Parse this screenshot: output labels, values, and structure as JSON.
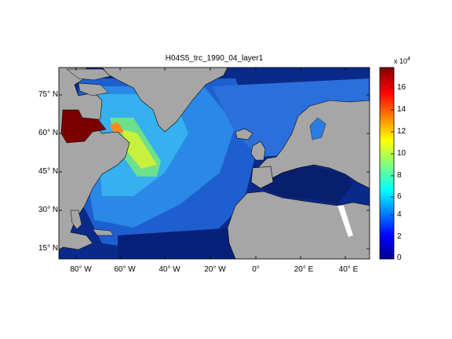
{
  "figure": {
    "title": "H04S5_trc_1990_04_layer1",
    "lat_ticks": [
      "75° N",
      "60° N",
      "45° N",
      "30° N",
      "15° N"
    ],
    "lon_ticks": [
      "80° W",
      "60° W",
      "40° W",
      "20° W",
      "0°",
      "20° E",
      "40° E"
    ],
    "colorbar": {
      "multiplier_base": "x 10",
      "multiplier_exp": "4",
      "ticks": [
        "16",
        "14",
        "12",
        "10",
        "8",
        "6",
        "4",
        "2",
        "0"
      ],
      "min": 0,
      "max": 17.5,
      "colormap": "jet"
    },
    "colors": {
      "land": "#a6a6a6",
      "missing": "#ffffff",
      "low": "#00006e",
      "high": "#800000"
    }
  }
}
